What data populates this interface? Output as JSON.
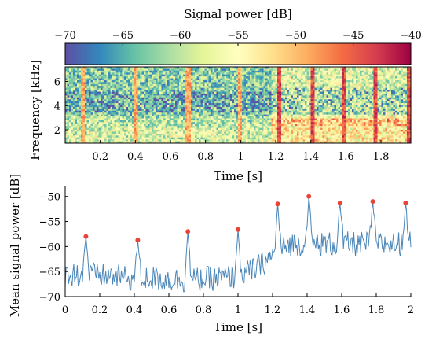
{
  "chart_data": [
    {
      "type": "heatmap",
      "colorbar": {
        "label": "Signal power [dB]",
        "range": [
          -70,
          -40
        ],
        "tick_values": [
          -70,
          -65,
          -60,
          -55,
          -50,
          -45,
          -40
        ],
        "tick_labels": [
          "−70",
          "−65",
          "−60",
          "−55",
          "−50",
          "−45",
          "−40"
        ],
        "colormap": [
          "#5e4fa2",
          "#3288bd",
          "#66c2a5",
          "#abdda4",
          "#e6f598",
          "#ffffbf",
          "#fee08b",
          "#fdae61",
          "#f46d43",
          "#d53e4f",
          "#9e0142"
        ],
        "placement": "top"
      },
      "xlabel": "Time [s]",
      "ylabel": "Frequency [kHz]",
      "xlim": [
        0,
        1.97
      ],
      "ylim": [
        0.9,
        7.2
      ],
      "x_ticks": [
        0.2,
        0.4,
        0.6,
        0.8,
        1,
        1.2,
        1.4,
        1.6,
        1.8
      ],
      "x_tick_labels": [
        "0.2",
        "0.4",
        "0.6",
        "0.8",
        "1",
        "1.2",
        "1.4",
        "1.6",
        "1.8"
      ],
      "y_ticks": [
        2,
        4,
        6
      ],
      "y_tick_labels": [
        "2",
        "4",
        "6"
      ],
      "transient_times": [
        0.1,
        0.4,
        0.7,
        1.0,
        1.22,
        1.41,
        1.59,
        1.77,
        1.96
      ]
    },
    {
      "type": "line",
      "xlabel": "Time [s]",
      "ylabel": "Mean signal power [dB]",
      "xlim": [
        0,
        2
      ],
      "ylim": [
        -70,
        -48
      ],
      "x_ticks": [
        0,
        0.2,
        0.4,
        0.6,
        0.8,
        1,
        1.2,
        1.4,
        1.6,
        1.8,
        2
      ],
      "x_tick_labels": [
        "0",
        "0.2",
        "0.4",
        "0.6",
        "0.8",
        "1",
        "1.2",
        "1.4",
        "1.6",
        "1.8",
        "2"
      ],
      "y_ticks": [
        -70,
        -65,
        -60,
        -55,
        -50
      ],
      "y_tick_labels": [
        "−70",
        "−65",
        "−60",
        "−55",
        "−50"
      ],
      "line_color": "#4a86b8",
      "peak_color": "#e8443a",
      "peaks": {
        "x": [
          0.12,
          0.42,
          0.71,
          1.0,
          1.23,
          1.41,
          1.59,
          1.78,
          1.97
        ],
        "y": [
          -58.0,
          -58.7,
          -57.0,
          -56.6,
          -51.5,
          -50.0,
          -51.3,
          -51.0,
          -51.3
        ]
      },
      "baseline": {
        "x": [
          0.0,
          0.1,
          0.2,
          0.3,
          0.4,
          0.5,
          0.6,
          0.7,
          0.8,
          0.9,
          1.0,
          1.1,
          1.2,
          1.3,
          1.4,
          1.5,
          1.6,
          1.7,
          1.8,
          1.9,
          2.0
        ],
        "y": [
          -65.5,
          -65.5,
          -65.8,
          -66.0,
          -66.5,
          -66.3,
          -66.5,
          -66.8,
          -66.5,
          -66.3,
          -66.0,
          -64.5,
          -62.0,
          -59.5,
          -59.5,
          -59.5,
          -59.5,
          -59.5,
          -59.5,
          -59.5,
          -59.5
        ]
      }
    }
  ]
}
